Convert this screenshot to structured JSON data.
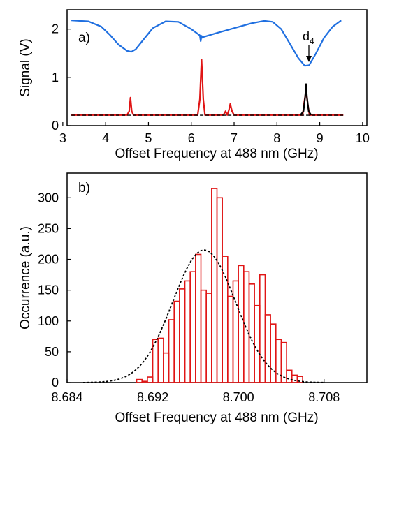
{
  "chart_data": [
    {
      "type": "line",
      "panel_label": "a)",
      "xlabel": "Offset Frequency at 488 nm (GHz)",
      "ylabel": "Signal (V)",
      "xlim": [
        3.1,
        10.1
      ],
      "ylim": [
        0,
        2.4
      ],
      "xticks": [
        3,
        4,
        5,
        6,
        7,
        8,
        9,
        10
      ],
      "yticks": [
        0,
        1,
        2
      ],
      "annotation": {
        "text": "d",
        "subscript": "4",
        "x": 8.68
      },
      "series": [
        {
          "color": "#1f6fe0",
          "style": "solid",
          "x": [
            3.2,
            3.6,
            3.9,
            4.1,
            4.3,
            4.5,
            4.6,
            4.7,
            4.9,
            5.1,
            5.4,
            5.7,
            6.0,
            6.2,
            6.22,
            6.24,
            6.26,
            6.3,
            6.6,
            7.0,
            7.4,
            7.7,
            7.9,
            8.1,
            8.3,
            8.5,
            8.65,
            8.75,
            8.9,
            9.1,
            9.3,
            9.5
          ],
          "y": [
            2.18,
            2.16,
            2.05,
            1.88,
            1.68,
            1.55,
            1.53,
            1.58,
            1.8,
            2.02,
            2.16,
            2.15,
            2.0,
            1.87,
            1.75,
            1.86,
            1.82,
            1.84,
            1.92,
            2.02,
            2.12,
            2.17,
            2.15,
            2.0,
            1.7,
            1.4,
            1.24,
            1.25,
            1.48,
            1.82,
            2.05,
            2.18
          ]
        },
        {
          "color": "#e01515",
          "style": "solid",
          "x": [
            3.2,
            4.5,
            4.55,
            4.58,
            4.61,
            4.65,
            6.15,
            6.2,
            6.24,
            6.28,
            6.32,
            6.75,
            6.8,
            6.84,
            6.88,
            6.91,
            6.95,
            7.0,
            8.6,
            8.64,
            8.68,
            8.72,
            8.76,
            9.55
          ],
          "y": [
            0.22,
            0.22,
            0.3,
            0.58,
            0.3,
            0.22,
            0.22,
            0.55,
            1.37,
            0.55,
            0.22,
            0.22,
            0.3,
            0.22,
            0.33,
            0.45,
            0.3,
            0.22,
            0.22,
            0.5,
            0.72,
            0.45,
            0.22,
            0.22
          ]
        },
        {
          "color": "#000000",
          "style": "solid",
          "x": [
            8.55,
            8.62,
            8.66,
            8.68,
            8.7,
            8.74,
            8.8
          ],
          "y": [
            0.22,
            0.3,
            0.6,
            0.86,
            0.6,
            0.3,
            0.22
          ]
        },
        {
          "color": "#000000",
          "style": "dashed",
          "x": [
            3.2,
            9.55
          ],
          "y": [
            0.215,
            0.215
          ]
        }
      ]
    },
    {
      "type": "bar",
      "panel_label": "b)",
      "xlabel": "Offset Frequency at 488 nm (GHz)",
      "ylabel": "Occurrence (a.u.)",
      "xlim": [
        0.684,
        0.712
      ],
      "ylim": [
        0,
        340
      ],
      "xticks": [
        "8.684",
        "8.692",
        "8.700",
        "8.708"
      ],
      "xtick_values": [
        0.684,
        0.692,
        0.7,
        0.708
      ],
      "yticks": [
        0,
        50,
        100,
        150,
        200,
        250,
        300
      ],
      "bin_start": 0.6905,
      "bin_width": 0.0005,
      "counts": [
        5,
        2,
        9,
        70,
        72,
        48,
        102,
        132,
        152,
        165,
        180,
        208,
        150,
        145,
        315,
        300,
        205,
        140,
        165,
        190,
        180,
        160,
        125,
        175,
        110,
        95,
        70,
        65,
        20,
        12,
        10
      ],
      "bar_color": "#e01515",
      "fit": {
        "color": "#000000",
        "style": "dotted",
        "amplitude": 215,
        "center": 0.6968,
        "sigma": 0.00295,
        "xrange": [
          0.6855,
          0.708
        ]
      }
    }
  ]
}
